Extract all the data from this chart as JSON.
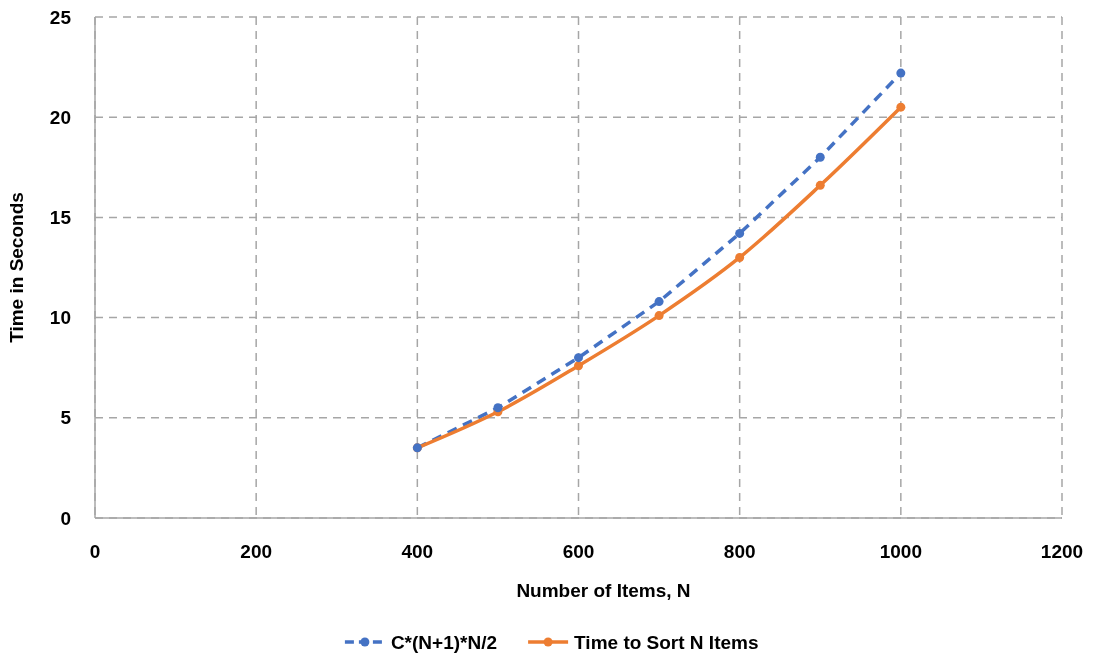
{
  "chart_data": {
    "type": "line",
    "xlabel": "Number of Items, N",
    "ylabel": "Time in Seconds",
    "x": [
      400,
      500,
      600,
      700,
      800,
      900,
      1000
    ],
    "series": [
      {
        "name": "C*(N+1)*N/2",
        "color": "#4472c4",
        "line_style": "dashed",
        "values": [
          3.5,
          5.5,
          8.0,
          10.8,
          14.2,
          18.0,
          22.2
        ]
      },
      {
        "name": "Time to Sort N Items",
        "color": "#ed7d31",
        "line_style": "solid",
        "values": [
          3.5,
          5.3,
          7.6,
          10.1,
          13.0,
          16.6,
          20.5
        ]
      }
    ],
    "xlim": [
      0,
      1200
    ],
    "xticks": [
      0,
      200,
      400,
      600,
      800,
      1000,
      1200
    ],
    "ylim": [
      0,
      25
    ],
    "yticks": [
      0,
      5,
      10,
      15,
      20,
      25
    ],
    "grid": true,
    "legend": "bottom",
    "marker": "circle"
  }
}
